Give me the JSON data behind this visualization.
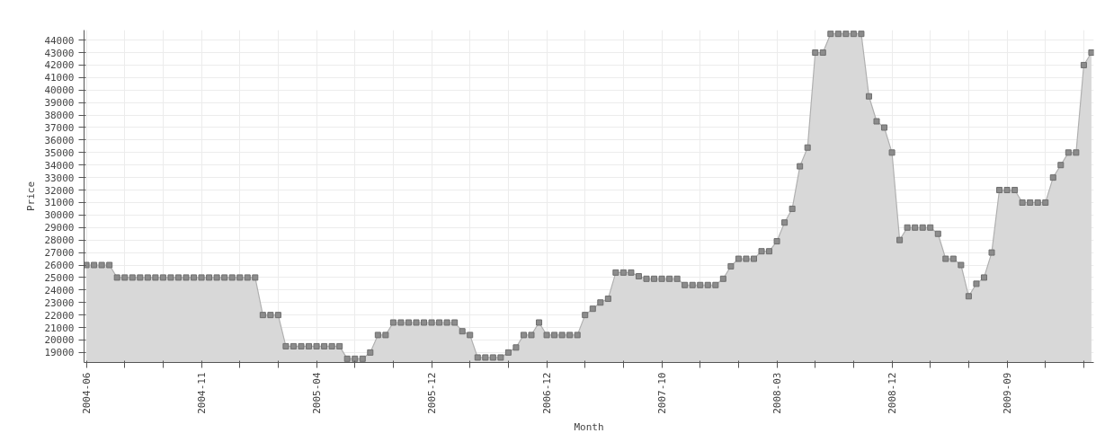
{
  "chart_data": {
    "type": "area",
    "xlabel": "Month",
    "ylabel": "Price",
    "categories": [
      "2004-06",
      null,
      null,
      null,
      null,
      null,
      null,
      null,
      null,
      null,
      null,
      null,
      null,
      null,
      null,
      "2004-11",
      null,
      null,
      null,
      null,
      null,
      null,
      null,
      null,
      null,
      null,
      null,
      null,
      null,
      null,
      "2005-04",
      null,
      null,
      null,
      null,
      null,
      null,
      null,
      null,
      null,
      null,
      null,
      null,
      null,
      null,
      "2005-12",
      null,
      null,
      null,
      null,
      null,
      null,
      null,
      null,
      null,
      null,
      null,
      null,
      null,
      null,
      "2006-12",
      null,
      null,
      null,
      null,
      null,
      null,
      null,
      null,
      null,
      null,
      null,
      null,
      null,
      null,
      "2007-10",
      null,
      null,
      null,
      null,
      null,
      null,
      null,
      null,
      null,
      null,
      null,
      null,
      null,
      null,
      "2008-03",
      null,
      null,
      null,
      null,
      null,
      null,
      null,
      null,
      null,
      null,
      null,
      null,
      null,
      null,
      "2008-12",
      null,
      null,
      null,
      null,
      null,
      null,
      null,
      null,
      null,
      null,
      null,
      null,
      null,
      null,
      "2009-09",
      null,
      null,
      null,
      null,
      null,
      null,
      null,
      null,
      null,
      null,
      null
    ],
    "series": [
      {
        "color": "#8c8c8c",
        "values": [
          26000,
          26000,
          26000,
          26000,
          25000,
          25000,
          25000,
          25000,
          25000,
          25000,
          25000,
          25000,
          25000,
          25000,
          25000,
          25000,
          25000,
          25000,
          25000,
          25000,
          25000,
          25000,
          25000,
          22000,
          22000,
          22000,
          19500,
          19500,
          19500,
          19500,
          19500,
          19500,
          19500,
          19500,
          18500,
          18500,
          18500,
          19000,
          20400,
          20400,
          21400,
          21400,
          21400,
          21400,
          21400,
          21400,
          21400,
          21400,
          21400,
          20700,
          20400,
          18600,
          18600,
          18600,
          18600,
          19000,
          19400,
          20400,
          20400,
          21400,
          20400,
          20400,
          20400,
          20400,
          20400,
          22000,
          22500,
          23000,
          23300,
          25400,
          25400,
          25400,
          25100,
          24900,
          24900,
          24900,
          24900,
          24900,
          24400,
          24400,
          24400,
          24400,
          24400,
          24900,
          25900,
          26500,
          26500,
          26500,
          27100,
          27100,
          27900,
          29400,
          30500,
          33900,
          35400,
          43000,
          43000,
          44500,
          44500,
          44500,
          44500,
          44500,
          39500,
          37500,
          37000,
          35000,
          28000,
          29000,
          29000,
          29000,
          29000,
          28500,
          26500,
          26500,
          26000,
          23500,
          24500,
          25000,
          27000,
          32000,
          32000,
          32000,
          31000,
          31000,
          31000,
          31000,
          33000,
          34000,
          35000,
          35000,
          42000,
          43000
        ]
      }
    ],
    "ylim": [
      18200,
      44800
    ],
    "yticks": [
      19000,
      20000,
      21000,
      22000,
      23000,
      24000,
      25000,
      26000,
      27000,
      28000,
      29000,
      30000,
      31000,
      32000,
      33000,
      34000,
      35000,
      36000,
      37000,
      38000,
      39000,
      40000,
      41000,
      42000,
      43000,
      44000
    ],
    "grid": true,
    "marker": "square",
    "line_style": "solid"
  }
}
